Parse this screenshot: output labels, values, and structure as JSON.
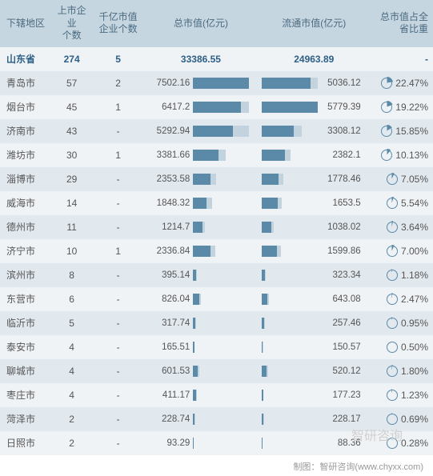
{
  "headers": {
    "region": "下辖地区",
    "count": "上市企业\n个数",
    "big": "千亿市值\n企业个数",
    "tmv": "总市值(亿元)",
    "cmv": "流通市值(亿元)",
    "pct": "总市值占全\n省比重"
  },
  "total": {
    "region": "山东省",
    "count": 274,
    "big": 5,
    "tmv": "33386.55",
    "cmv": "24963.89",
    "pct": "-"
  },
  "max_tmv": 7502.16,
  "max_cmv": 5779.39,
  "colors": {
    "header_bg": "#c6d6e0",
    "header_fg": "#4a6a80",
    "row_odd": "#f0f3f6",
    "row_even": "#e1e8ee",
    "bar_dark": "#5b8aa8",
    "bar_light": "#c3d3de",
    "total_fg": "#2d5f87"
  },
  "rows": [
    {
      "region": "青岛市",
      "count": 57,
      "big": "2",
      "tmv": 7502.16,
      "cmv": 5036.12,
      "pct": "22.47%",
      "pctv": 22.47
    },
    {
      "region": "烟台市",
      "count": 45,
      "big": "1",
      "tmv": 6417.2,
      "cmv": 5779.39,
      "pct": "19.22%",
      "pctv": 19.22
    },
    {
      "region": "济南市",
      "count": 43,
      "big": "-",
      "tmv": 5292.94,
      "cmv": 3308.12,
      "pct": "15.85%",
      "pctv": 15.85
    },
    {
      "region": "潍坊市",
      "count": 30,
      "big": "1",
      "tmv": 3381.66,
      "cmv": 2382.1,
      "pct": "10.13%",
      "pctv": 10.13
    },
    {
      "region": "淄博市",
      "count": 29,
      "big": "-",
      "tmv": 2353.58,
      "cmv": 1778.46,
      "pct": "7.05%",
      "pctv": 7.05
    },
    {
      "region": "威海市",
      "count": 14,
      "big": "-",
      "tmv": 1848.32,
      "cmv": 1653.5,
      "pct": "5.54%",
      "pctv": 5.54
    },
    {
      "region": "德州市",
      "count": 11,
      "big": "-",
      "tmv": 1214.7,
      "cmv": 1038.02,
      "pct": "3.64%",
      "pctv": 3.64
    },
    {
      "region": "济宁市",
      "count": 10,
      "big": "1",
      "tmv": 2336.84,
      "cmv": 1599.86,
      "pct": "7.00%",
      "pctv": 7.0
    },
    {
      "region": "滨州市",
      "count": 8,
      "big": "-",
      "tmv": 395.14,
      "cmv": 323.34,
      "pct": "1.18%",
      "pctv": 1.18
    },
    {
      "region": "东营市",
      "count": 6,
      "big": "-",
      "tmv": 826.04,
      "cmv": 643.08,
      "pct": "2.47%",
      "pctv": 2.47
    },
    {
      "region": "临沂市",
      "count": 5,
      "big": "-",
      "tmv": 317.74,
      "cmv": 257.46,
      "pct": "0.95%",
      "pctv": 0.95
    },
    {
      "region": "泰安市",
      "count": 4,
      "big": "-",
      "tmv": 165.51,
      "cmv": 150.57,
      "pct": "0.50%",
      "pctv": 0.5
    },
    {
      "region": "聊城市",
      "count": 4,
      "big": "-",
      "tmv": 601.53,
      "cmv": 520.12,
      "pct": "1.80%",
      "pctv": 1.8
    },
    {
      "region": "枣庄市",
      "count": 4,
      "big": "-",
      "tmv": 411.17,
      "cmv": 177.23,
      "pct": "1.23%",
      "pctv": 1.23
    },
    {
      "region": "菏泽市",
      "count": 2,
      "big": "-",
      "tmv": 228.74,
      "cmv": 228.17,
      "pct": "0.69%",
      "pctv": 0.69
    },
    {
      "region": "日照市",
      "count": 2,
      "big": "-",
      "tmv": 93.29,
      "cmv": 88.36,
      "pct": "0.28%",
      "pctv": 0.28
    }
  ],
  "footer": "制图：智研咨询(www.chyxx.com)",
  "watermark": "智研咨询"
}
